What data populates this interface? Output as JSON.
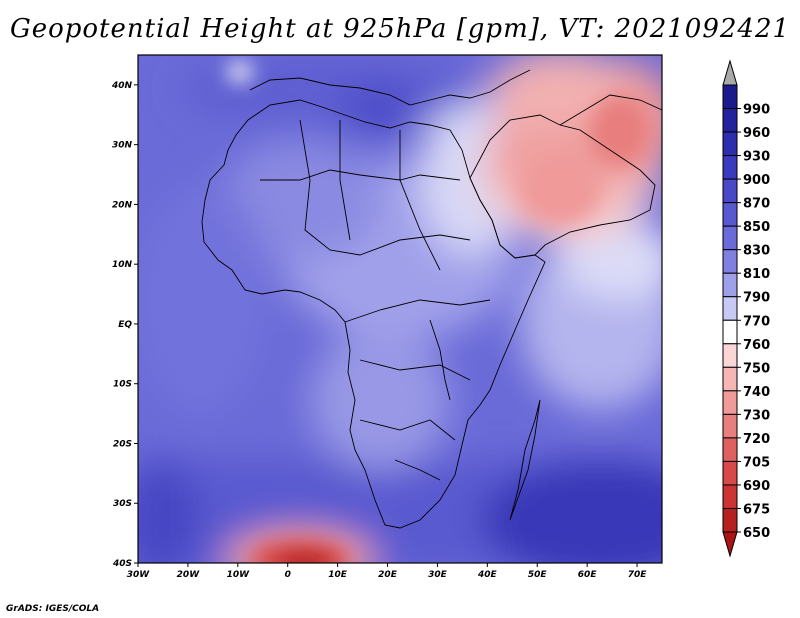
{
  "title": "Geopotential Height at 925hPa [gpm], VT: 2021092421",
  "footer": "GrADS: IGES/COLA",
  "map": {
    "lon_range": [
      -30,
      75
    ],
    "lat_range": [
      -40,
      45
    ],
    "lon_ticks": [
      {
        "lon": -30,
        "label": "30W"
      },
      {
        "lon": -20,
        "label": "20W"
      },
      {
        "lon": -10,
        "label": "10W"
      },
      {
        "lon": 0,
        "label": "0"
      },
      {
        "lon": 10,
        "label": "10E"
      },
      {
        "lon": 20,
        "label": "20E"
      },
      {
        "lon": 30,
        "label": "30E"
      },
      {
        "lon": 40,
        "label": "40E"
      },
      {
        "lon": 50,
        "label": "50E"
      },
      {
        "lon": 60,
        "label": "60E"
      },
      {
        "lon": 70,
        "label": "70E"
      }
    ],
    "lat_ticks": [
      {
        "lat": 40,
        "label": "40N"
      },
      {
        "lat": 30,
        "label": "30N"
      },
      {
        "lat": 20,
        "label": "20N"
      },
      {
        "lat": 10,
        "label": "10N"
      },
      {
        "lat": 0,
        "label": "EQ"
      },
      {
        "lat": -10,
        "label": "10S"
      },
      {
        "lat": -20,
        "label": "20S"
      },
      {
        "lat": -30,
        "label": "30S"
      },
      {
        "lat": -40,
        "label": "40S"
      }
    ]
  },
  "colorbar": [
    {
      "label": "990",
      "color": "#1a1a8c"
    },
    {
      "label": "960",
      "color": "#22229e"
    },
    {
      "label": "930",
      "color": "#2d2db0"
    },
    {
      "label": "900",
      "color": "#3a3ac0"
    },
    {
      "label": "870",
      "color": "#4848c8"
    },
    {
      "label": "850",
      "color": "#5858d0"
    },
    {
      "label": "830",
      "color": "#6a6ad8"
    },
    {
      "label": "810",
      "color": "#8080e0"
    },
    {
      "label": "790",
      "color": "#a0a0ea"
    },
    {
      "label": "770",
      "color": "#c8c8f4"
    },
    {
      "label": "760",
      "color": "#ffffff"
    },
    {
      "label": "750",
      "color": "#fbd6d6"
    },
    {
      "label": "740",
      "color": "#f6b6b6"
    },
    {
      "label": "730",
      "color": "#f09a9a"
    },
    {
      "label": "720",
      "color": "#e87e7e"
    },
    {
      "label": "705",
      "color": "#e06060"
    },
    {
      "label": "690",
      "color": "#d84a4a"
    },
    {
      "label": "675",
      "color": "#cc3434"
    },
    {
      "label": "650",
      "color": "#b82020"
    }
  ],
  "colorbar_over_color": "#a9a9a9",
  "colorbar_under_color": "#aa1414"
}
